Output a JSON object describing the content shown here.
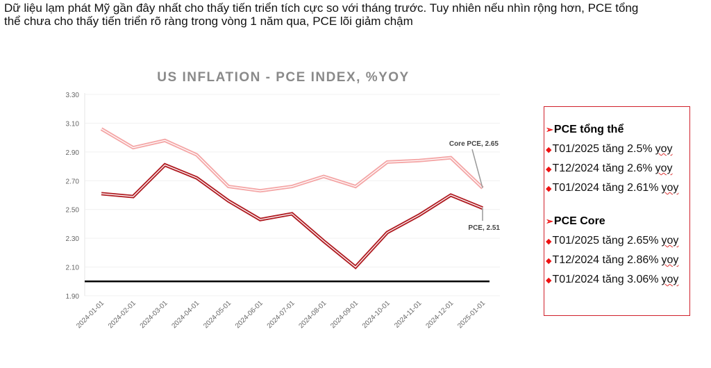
{
  "headline": "Dữ liệu lạm phát Mỹ gần đây nhất cho thấy tiến triển tích cực so với tháng trước. Tuy nhiên nếu nhìn rộng hơn, PCE tổng thể chưa cho thấy tiến triển rõ ràng trong vòng 1 năm qua, PCE lõi giảm chậm",
  "chart_data": {
    "type": "line",
    "title": "US INFLATION - PCE INDEX, %YOY",
    "categories": [
      "2024-01-01",
      "2024-02-01",
      "2024-03-01",
      "2024-04-01",
      "2024-05-01",
      "2024-06-01",
      "2024-07-01",
      "2024-08-01",
      "2024-09-01",
      "2024-10-01",
      "2024-11-01",
      "2024-12-01",
      "2025-01-01"
    ],
    "series": [
      {
        "name": "Core PCE",
        "color": "#f4a6a6",
        "values": [
          3.06,
          2.93,
          2.98,
          2.88,
          2.66,
          2.63,
          2.66,
          2.73,
          2.66,
          2.83,
          2.84,
          2.86,
          2.65
        ],
        "end_label": "Core PCE, 2.65"
      },
      {
        "name": "PCE",
        "color": "#b01c22",
        "values": [
          2.61,
          2.59,
          2.81,
          2.72,
          2.56,
          2.43,
          2.47,
          2.28,
          2.1,
          2.34,
          2.46,
          2.6,
          2.51
        ],
        "end_label": "PCE, 2.51"
      }
    ],
    "reference_line": {
      "value": 2.0,
      "color": "#000000"
    },
    "ylim": [
      1.9,
      3.3
    ],
    "yticks": [
      "1.90",
      "2.10",
      "2.30",
      "2.50",
      "2.70",
      "2.90",
      "3.10",
      "3.30"
    ],
    "grid": true
  },
  "box": {
    "sections": [
      {
        "title": "PCE tổng thể",
        "items": [
          {
            "text": "T01/2025 tăng 2.5%",
            "suffix": "yoy"
          },
          {
            "text": "T12/2024 tăng 2.6%",
            "suffix": "yoy"
          },
          {
            "text": "T01/2024 tăng 2.61%",
            "suffix": "yoy"
          }
        ]
      },
      {
        "title": "PCE Core",
        "items": [
          {
            "text": "T01/2025 tăng 2.65%",
            "suffix": "yoy"
          },
          {
            "text": "T12/2024 tăng 2.86%",
            "suffix": "yoy"
          },
          {
            "text": "T01/2024 tăng 3.06%",
            "suffix": "yoy"
          }
        ]
      }
    ]
  }
}
